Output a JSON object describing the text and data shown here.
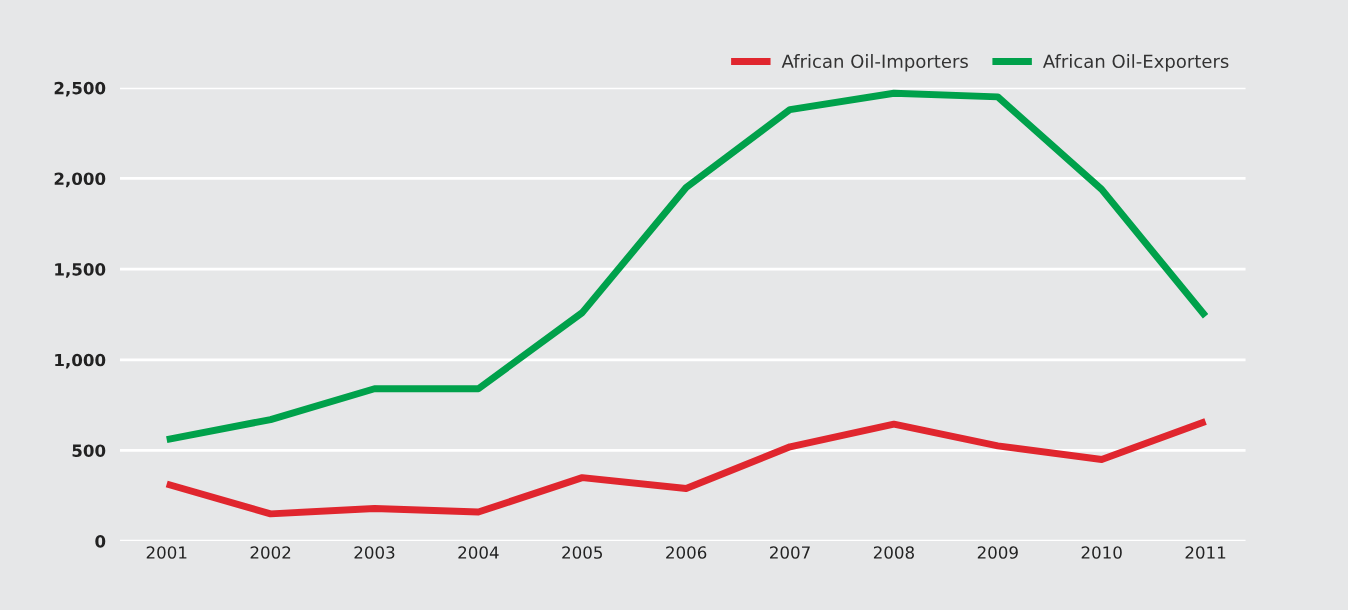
{
  "chart_data": {
    "type": "line",
    "categories": [
      "2001",
      "2002",
      "2003",
      "2004",
      "2005",
      "2006",
      "2007",
      "2008",
      "2009",
      "2010",
      "2011"
    ],
    "series": [
      {
        "name": "African Oil-Importers",
        "color": "#e0262e",
        "values": [
          315,
          150,
          180,
          160,
          350,
          290,
          520,
          645,
          525,
          450,
          660
        ]
      },
      {
        "name": "African Oil-Exporters",
        "color": "#00a14b",
        "values": [
          560,
          670,
          840,
          840,
          1260,
          1950,
          2380,
          2470,
          2450,
          1940,
          1240
        ]
      }
    ],
    "ylim": [
      0,
      2500
    ],
    "yticks": [
      {
        "value": 0,
        "label": "0"
      },
      {
        "value": 500,
        "label": "500"
      },
      {
        "value": 1000,
        "label": "1,000"
      },
      {
        "value": 1500,
        "label": "1,500"
      },
      {
        "value": 2000,
        "label": "2,000"
      },
      {
        "value": 2500,
        "label": "2,500"
      }
    ],
    "grid": "y",
    "legend": "top right",
    "marker": "none",
    "line_style": "solid"
  }
}
